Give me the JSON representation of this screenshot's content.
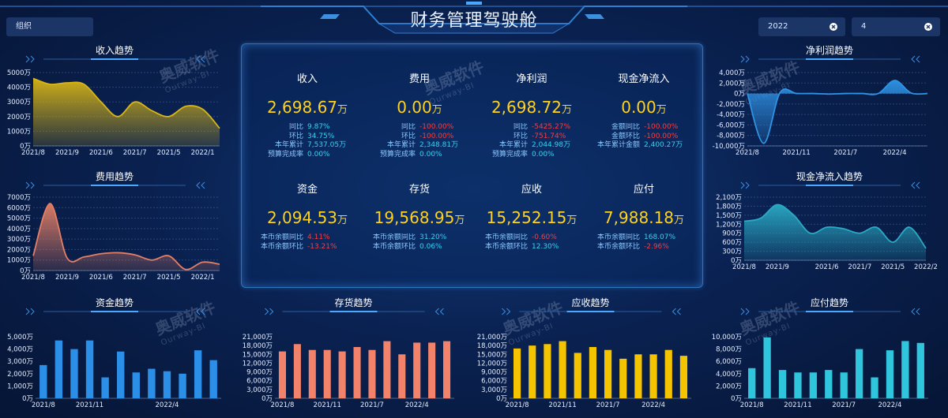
{
  "header": {
    "title": "财务管理驾驶舱",
    "org_label": "组织",
    "year": "2022",
    "month": "4"
  },
  "watermark": {
    "name": "奥威软件",
    "sub": "Ourway-BI"
  },
  "kpis": [
    {
      "name": "收入",
      "value": "2,698.67",
      "unit": "万",
      "rows": [
        {
          "label": "同比",
          "value": "9.87%",
          "color": "#36d3f0"
        },
        {
          "label": "环比",
          "value": "34.75%",
          "color": "#36d3f0"
        },
        {
          "label": "本年累计",
          "value": "7,537.05万",
          "color": "#36d3f0"
        },
        {
          "label": "预算完成率",
          "value": "0.00%",
          "color": "#36d3f0"
        }
      ]
    },
    {
      "name": "费用",
      "value": "0.00",
      "unit": "万",
      "rows": [
        {
          "label": "同比",
          "value": "-100.00%",
          "color": "#ff3b3b"
        },
        {
          "label": "环比",
          "value": "-100.00%",
          "color": "#ff3b3b"
        },
        {
          "label": "本年累计",
          "value": "2,348.81万",
          "color": "#36d3f0"
        },
        {
          "label": "预算完成率",
          "value": "0.00%",
          "color": "#36d3f0"
        }
      ]
    },
    {
      "name": "净利润",
      "value": "2,698.72",
      "unit": "万",
      "rows": [
        {
          "label": "同比",
          "value": "-5425.27%",
          "color": "#ff3b3b"
        },
        {
          "label": "环比",
          "value": "-751.74%",
          "color": "#ff3b3b"
        },
        {
          "label": "本年累计",
          "value": "2,044.98万",
          "color": "#36d3f0"
        },
        {
          "label": "预算完成率",
          "value": "0.00%",
          "color": "#36d3f0"
        }
      ]
    },
    {
      "name": "现金净流入",
      "value": "0.00",
      "unit": "万",
      "rows": [
        {
          "label": "金额同比",
          "value": "-100.00%",
          "color": "#ff3b3b"
        },
        {
          "label": "金额环比",
          "value": "-100.00%",
          "color": "#ff3b3b"
        },
        {
          "label": "本年累计金额",
          "value": "2,400.27万",
          "color": "#36d3f0"
        }
      ]
    },
    {
      "name": "资金",
      "value": "2,094.53",
      "unit": "万",
      "rows": [
        {
          "label": "本币余额同比",
          "value": "4.11%",
          "color": "#ff3b3b"
        },
        {
          "label": "本币余额环比",
          "value": "-13.21%",
          "color": "#ff3b3b"
        }
      ]
    },
    {
      "name": "存货",
      "value": "19,568.95",
      "unit": "万",
      "rows": [
        {
          "label": "本币余额同比",
          "value": "31.20%",
          "color": "#36d3f0"
        },
        {
          "label": "本币余额环比",
          "value": "0.06%",
          "color": "#36d3f0"
        }
      ]
    },
    {
      "name": "应收",
      "value": "15,252.15",
      "unit": "万",
      "rows": [
        {
          "label": "本币余额同比",
          "value": "-0.60%",
          "color": "#ff3b3b"
        },
        {
          "label": "本币余额环比",
          "value": "12.30%",
          "color": "#36d3f0"
        }
      ]
    },
    {
      "name": "应付",
      "value": "7,988.18",
      "unit": "万",
      "rows": [
        {
          "label": "本币余额同比",
          "value": "168.07%",
          "color": "#36d3f0"
        },
        {
          "label": "本币余额环比",
          "value": "-2.96%",
          "color": "#ff3b3b"
        }
      ]
    }
  ],
  "chart_data": [
    {
      "type": "area",
      "title": "收入趋势",
      "color": "#d9b616",
      "grid": true,
      "categories": [
        "2021/8",
        null,
        "2021/9",
        null,
        "2021/6",
        null,
        "2021/7",
        null,
        "2021/5",
        null,
        "2022/1",
        null
      ],
      "values": [
        4600,
        4200,
        4300,
        4200,
        3000,
        2000,
        3000,
        2400,
        2000,
        2700,
        2500,
        1200
      ],
      "ylim": [
        0,
        5000
      ],
      "yticks": [
        {
          "value": 0,
          "label": "0万"
        },
        {
          "value": 1000,
          "label": "1000万"
        },
        {
          "value": 2000,
          "label": "2000万"
        },
        {
          "value": 3000,
          "label": "3000万"
        },
        {
          "value": 4000,
          "label": "4000万"
        },
        {
          "value": 5000,
          "label": "5000万"
        }
      ]
    },
    {
      "type": "area",
      "title": "费用趋势",
      "color": "#e47f66",
      "grid": true,
      "categories": [
        "2021/8",
        null,
        "2021/9",
        null,
        "2021/6",
        null,
        "2021/7",
        null,
        "2021/5",
        null,
        "2022/1",
        null
      ],
      "values": [
        1400,
        6400,
        1200,
        1300,
        1600,
        1700,
        1500,
        1000,
        1400,
        100,
        800,
        600
      ],
      "ylim": [
        0,
        7000
      ],
      "yticks": [
        {
          "value": 0,
          "label": "0万"
        },
        {
          "value": 1000,
          "label": "1000万"
        },
        {
          "value": 2000,
          "label": "2000万"
        },
        {
          "value": 3000,
          "label": "3000万"
        },
        {
          "value": 4000,
          "label": "4000万"
        },
        {
          "value": 5000,
          "label": "5000万"
        },
        {
          "value": 6000,
          "label": "6000万"
        },
        {
          "value": 7000,
          "label": "7000万"
        }
      ]
    },
    {
      "type": "area",
      "title": "净利润趋势",
      "color": "#2f93e6",
      "grid": true,
      "categories": [
        "2021/8",
        null,
        null,
        "2021/11",
        null,
        null,
        "2021/7",
        null,
        null,
        "2022/4",
        null,
        null
      ],
      "values": [
        0,
        -9500,
        200,
        0,
        0,
        -100,
        0,
        0,
        0,
        2500,
        100,
        0
      ],
      "ylim": [
        -10000,
        4000
      ],
      "yticks": [
        {
          "value": -10000,
          "label": "-10,000万"
        },
        {
          "value": -8000,
          "label": "-8,000万"
        },
        {
          "value": -6000,
          "label": "-6,000万"
        },
        {
          "value": -4000,
          "label": "-4,000万"
        },
        {
          "value": -2000,
          "label": "-2,000万"
        },
        {
          "value": 0,
          "label": "0万"
        },
        {
          "value": 2000,
          "label": "2,000万"
        },
        {
          "value": 4000,
          "label": "4,000万"
        }
      ]
    },
    {
      "type": "area",
      "title": "现金净流入趋势",
      "color": "#2aaac4",
      "grid": true,
      "categories": [
        "2021/8",
        null,
        "2021/9",
        null,
        null,
        "2021/6",
        null,
        "2021/7",
        null,
        "2021/5",
        null,
        "2022/2"
      ],
      "values": [
        1300,
        1400,
        1850,
        1500,
        900,
        1100,
        1050,
        900,
        1100,
        600,
        1100,
        400
      ],
      "ylim": [
        0,
        2100
      ],
      "yticks": [
        {
          "value": 0,
          "label": "0万"
        },
        {
          "value": 300,
          "label": "300万"
        },
        {
          "value": 600,
          "label": "600万"
        },
        {
          "value": 900,
          "label": "900万"
        },
        {
          "value": 1200,
          "label": "1,200万"
        },
        {
          "value": 1500,
          "label": "1,500万"
        },
        {
          "value": 1800,
          "label": "1,800万"
        },
        {
          "value": 2100,
          "label": "2,100万"
        }
      ]
    },
    {
      "type": "bar",
      "title": "资金趋势",
      "color": "#2b8fe8",
      "grid": false,
      "categories": [
        "2021/8",
        null,
        null,
        "2021/11",
        null,
        null,
        null,
        null,
        "2022/4",
        null,
        null,
        null
      ],
      "values": [
        2700,
        4700,
        4000,
        4700,
        1700,
        3800,
        2100,
        2400,
        2200,
        2000,
        3900,
        3100
      ],
      "ylim": [
        0,
        5000
      ],
      "yticks": [
        {
          "value": 0,
          "label": "0万"
        },
        {
          "value": 1000,
          "label": "1,000万"
        },
        {
          "value": 2000,
          "label": "2,000万"
        },
        {
          "value": 3000,
          "label": "3,000万"
        },
        {
          "value": 4000,
          "label": "4,000万"
        },
        {
          "value": 5000,
          "label": "5,000万"
        }
      ]
    },
    {
      "type": "bar",
      "title": "存货趋势",
      "color": "#f2826a",
      "grid": false,
      "categories": [
        "2021/8",
        null,
        null,
        "2021/11",
        null,
        null,
        "2021/7",
        null,
        null,
        "2022/4",
        null,
        null
      ],
      "values": [
        16000,
        18500,
        16500,
        16500,
        16000,
        17500,
        16500,
        19500,
        15000,
        19000,
        19000,
        19500
      ],
      "ylim": [
        0,
        21000
      ],
      "yticks": [
        {
          "value": 0,
          "label": "0万"
        },
        {
          "value": 3000,
          "label": "3,000万"
        },
        {
          "value": 6000,
          "label": "6,000万"
        },
        {
          "value": 9000,
          "label": "9,000万"
        },
        {
          "value": 12000,
          "label": "12,000万"
        },
        {
          "value": 15000,
          "label": "15,000万"
        },
        {
          "value": 18000,
          "label": "18,000万"
        },
        {
          "value": 21000,
          "label": "21,000万"
        }
      ]
    },
    {
      "type": "bar",
      "title": "应收趋势",
      "color": "#f5c400",
      "grid": false,
      "categories": [
        "2021/8",
        null,
        null,
        "2021/11",
        null,
        null,
        "2021/7",
        null,
        null,
        "2022/4",
        null,
        null
      ],
      "values": [
        17000,
        18000,
        18500,
        19500,
        15500,
        17500,
        16500,
        13500,
        15000,
        15000,
        16500,
        14500
      ],
      "ylim": [
        0,
        21000
      ],
      "yticks": [
        {
          "value": 0,
          "label": "0万"
        },
        {
          "value": 3000,
          "label": "3,000万"
        },
        {
          "value": 6000,
          "label": "6,000万"
        },
        {
          "value": 9000,
          "label": "9,000万"
        },
        {
          "value": 12000,
          "label": "12,000万"
        },
        {
          "value": 15000,
          "label": "15,000万"
        },
        {
          "value": 18000,
          "label": "18,000万"
        },
        {
          "value": 21000,
          "label": "21,000万"
        }
      ]
    },
    {
      "type": "bar",
      "title": "应付趋势",
      "color": "#2ec5dd",
      "grid": false,
      "categories": [
        "2021/8",
        null,
        null,
        "2021/11",
        null,
        null,
        "2021/7",
        null,
        null,
        "2022/4",
        null,
        null
      ],
      "values": [
        4900,
        9900,
        4600,
        4200,
        4200,
        4600,
        4200,
        8000,
        3400,
        7800,
        9300,
        9000
      ],
      "ylim": [
        0,
        10000
      ],
      "yticks": [
        {
          "value": 0,
          "label": "0万"
        },
        {
          "value": 2000,
          "label": "2,000万"
        },
        {
          "value": 4000,
          "label": "4,000万"
        },
        {
          "value": 6000,
          "label": "6,000万"
        },
        {
          "value": 8000,
          "label": "8,000万"
        },
        {
          "value": 10000,
          "label": "10,000万"
        }
      ]
    }
  ]
}
